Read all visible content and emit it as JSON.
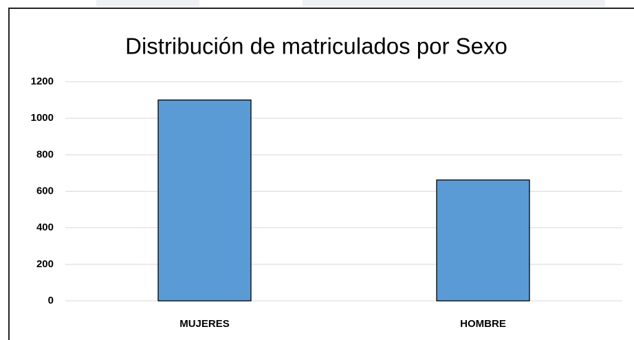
{
  "chart_data": {
    "type": "bar",
    "title": "Distribución de matriculados por Sexo",
    "categories": [
      "MUJERES",
      "HOMBRE"
    ],
    "values": [
      1100,
      662
    ],
    "color": "#5b9bd5",
    "ylim": [
      0,
      1200
    ],
    "yticks": [
      0,
      200,
      400,
      600,
      800,
      1000,
      1200
    ],
    "grid": true
  }
}
